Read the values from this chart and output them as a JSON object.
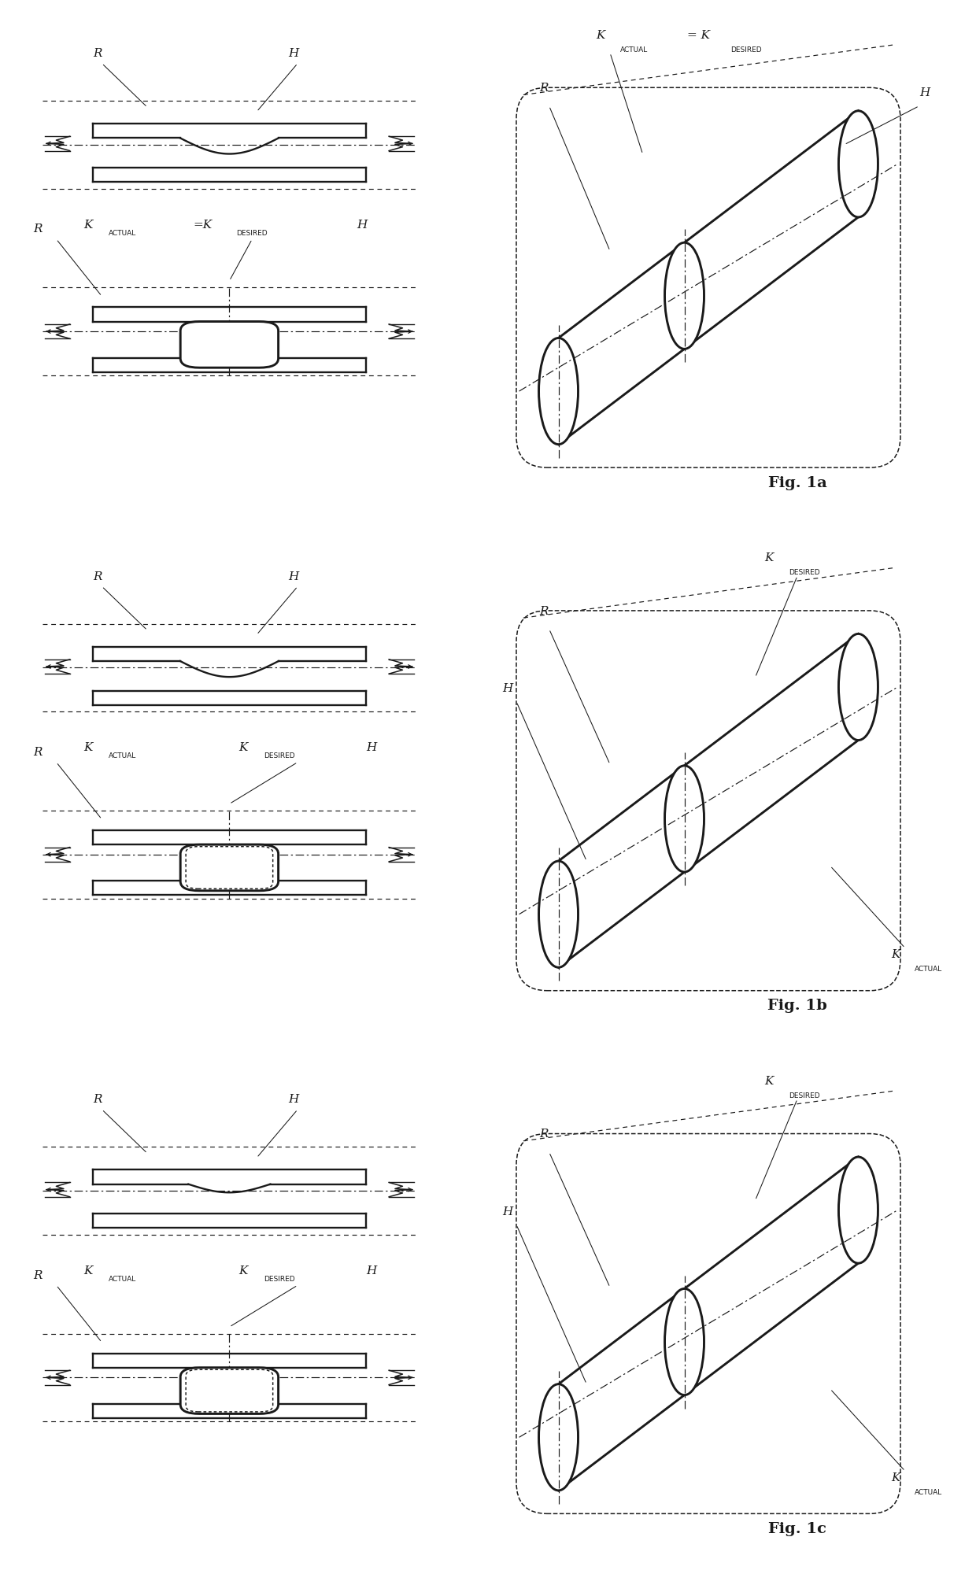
{
  "background_color": "#ffffff",
  "line_color": "#1a1a1a",
  "fig_labels": [
    "Fig. 1a",
    "Fig. 1b",
    "Fig. 1c"
  ],
  "variants": [
    "a",
    "b",
    "c"
  ],
  "rows": 3
}
